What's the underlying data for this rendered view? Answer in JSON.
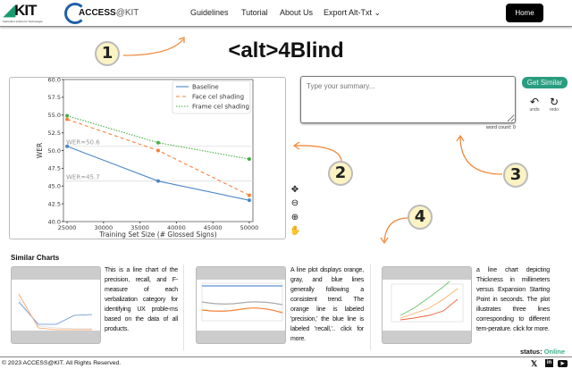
{
  "nav": {
    "kit_logo": "KIT",
    "kit_sub": "Karlsruher Institut für Technologie",
    "access_logo": "ACCESS",
    "access_suffix": "@KIT",
    "items": [
      "Guidelines",
      "Tutorial",
      "About Us",
      "Export Alt-Txt"
    ],
    "home": "Home"
  },
  "title": "<alt>4Blind",
  "badges": [
    "1",
    "2",
    "3",
    "4"
  ],
  "accent": "#2a9d80",
  "annotation_color": "#f08a3c",
  "chart_data": {
    "type": "line",
    "xlabel": "Training Set Size (# Glossed Signs)",
    "ylabel": "WER",
    "xlim": [
      24500,
      50500
    ],
    "ylim": [
      40,
      60
    ],
    "xticks": [
      25000,
      30000,
      35000,
      40000,
      45000,
      50000
    ],
    "yticks": [
      "40.0",
      "42.5",
      "45.0",
      "47.5",
      "50.0",
      "52.5",
      "55.0",
      "57.5",
      "60.0"
    ],
    "x": [
      25000,
      37500,
      50000
    ],
    "series": [
      {
        "name": "Baseline",
        "values": [
          50.6,
          45.7,
          43.0
        ],
        "color": "#4a86c5",
        "dash": ""
      },
      {
        "name": "Face cel shading",
        "values": [
          54.4,
          50.0,
          43.7
        ],
        "color": "#f5813a",
        "dash": "4,3"
      },
      {
        "name": "Frame cel shading",
        "values": [
          54.9,
          51.1,
          48.8
        ],
        "color": "#45b045",
        "dash": "1.5,1.5"
      }
    ],
    "hlines": [
      {
        "y": 50.6,
        "label": "WER=50.6"
      },
      {
        "y": 45.7,
        "label": "WER=45.7"
      }
    ],
    "legend": "top-right",
    "grid": false
  },
  "summary": {
    "placeholder": "Type your summary...",
    "value": "",
    "get_similar": "Get Similar",
    "undo": "undo",
    "redo": "redo",
    "word_count": "word count: 0"
  },
  "similar": {
    "heading": "Similar Charts",
    "cards": [
      {
        "text": "This is a line chart of the precision, recall, and F-measure of each verbalization category for identifying UX proble-ms based on the data of all products."
      },
      {
        "text": "A line plot displays orange, gray, and blue lines generally following a consistent trend. The orange line is labeled 'precision,' the blue line is labeled 'recall,'.. click for more."
      },
      {
        "text": "a line chart depicting Thickness in millimeters versus Expansion Starting Point in seconds. The plot illustrates three lines corresponding to different tem-perature. click for more."
      }
    ]
  },
  "status": {
    "label": "status:",
    "value": "Online"
  },
  "footer": {
    "copyright": "© 2023 ACCESS@KIT. All Rights Reserved.",
    "social": [
      "x-icon",
      "linkedin-icon",
      "youtube-icon"
    ]
  }
}
